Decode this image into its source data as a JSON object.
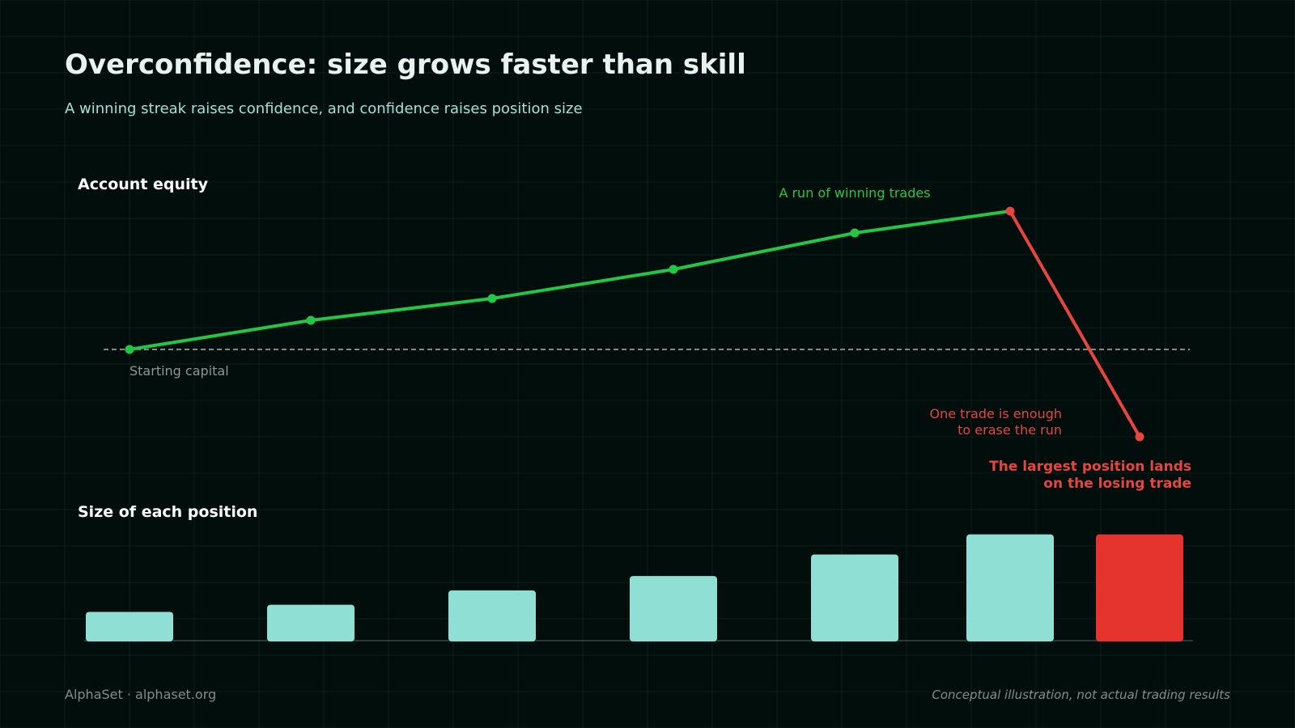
{
  "header": {
    "title": "Overconfidence: size grows faster than skill",
    "subtitle": "A winning streak raises confidence, and confidence raises position size"
  },
  "chart_data": [
    {
      "type": "line",
      "title": "Account equity",
      "x": [
        1,
        2,
        3,
        4,
        5,
        6,
        7
      ],
      "series": [
        {
          "values": [
            100,
            106,
            110.5,
            116.5,
            124,
            128.5,
            82
          ]
        }
      ],
      "reference_line": {
        "value": 100,
        "label": "Starting capital",
        "style": "dashed"
      },
      "annotations": [
        {
          "text": "A run of winning trades",
          "color": "#22c845"
        },
        {
          "text_lines": [
            "One trade is enough",
            "to erase the run"
          ],
          "color": "#e8453c"
        }
      ],
      "colors": {
        "winning": "#22c845",
        "losing": "#e8453c",
        "reference": "#a9b5b2"
      },
      "grid": true
    },
    {
      "type": "bar",
      "title": "Size of each position",
      "categories": [
        1,
        2,
        3,
        4,
        5,
        6,
        7
      ],
      "values": [
        1,
        1.25,
        1.75,
        2.25,
        3,
        3.7,
        3.7
      ],
      "highlight_index": 6,
      "annotation_lines": [
        "The largest position lands",
        "on the losing trade"
      ],
      "colors": {
        "normal": "#8fdfd5",
        "highlight": "#e5342d",
        "baseline": "#2f4a44"
      }
    }
  ],
  "footer": {
    "left": "AlphaSet · alphaset.org",
    "right": "Conceptual illustration, not actual trading results"
  },
  "theme": {
    "background": "#010e0b",
    "grid": "#0d1f1a"
  }
}
